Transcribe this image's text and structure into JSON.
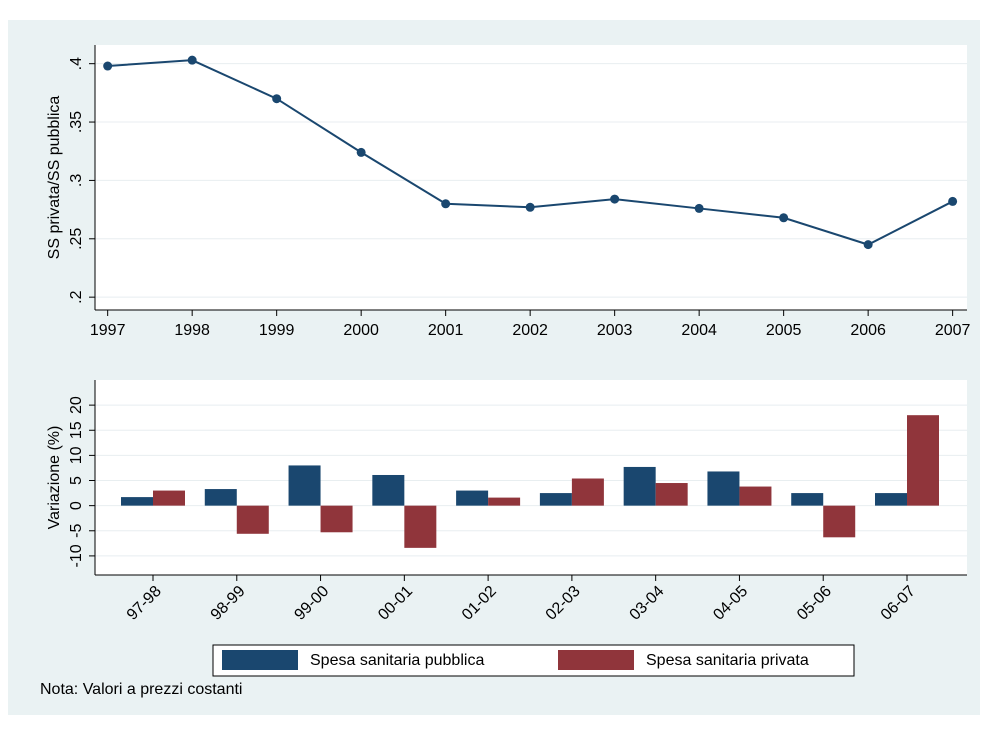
{
  "chart_data": [
    {
      "type": "line",
      "ylabel": "SS privata/SS pubblica",
      "x": [
        1997,
        1998,
        1999,
        2000,
        2001,
        2002,
        2003,
        2004,
        2005,
        2006,
        2007
      ],
      "xlim": [
        1996.85,
        2007.17
      ],
      "xticks": [
        1997,
        1998,
        1999,
        2000,
        2001,
        2002,
        2003,
        2004,
        2005,
        2006,
        2007
      ],
      "ylim": [
        0.189,
        0.416
      ],
      "yticks": [
        {
          "value": 0.2,
          "label": ".2"
        },
        {
          "value": 0.25,
          "label": ".25"
        },
        {
          "value": 0.3,
          "label": ".3"
        },
        {
          "value": 0.35,
          "label": ".35"
        },
        {
          "value": 0.4,
          "label": ".4"
        }
      ],
      "series": [
        {
          "color": "#1a476f",
          "values": [
            0.398,
            0.403,
            0.37,
            0.324,
            0.28,
            0.277,
            0.284,
            0.276,
            0.268,
            0.245,
            0.282
          ]
        }
      ],
      "grid": true
    },
    {
      "type": "bar",
      "ylabel": "Variazione (%)",
      "categories": [
        "97-98",
        "98-99",
        "99-00",
        "00-01",
        "01-02",
        "02-03",
        "03-04",
        "04-05",
        "05-06",
        "06-07"
      ],
      "ylim": [
        -13.8,
        25
      ],
      "yticks": [
        -10,
        -5,
        0,
        5,
        10,
        15,
        20
      ],
      "series": [
        {
          "name": "Spesa sanitaria pubblica",
          "color": "#1a476f",
          "values": [
            1.7,
            3.3,
            8.0,
            6.1,
            3.0,
            2.5,
            7.7,
            6.8,
            2.5,
            2.5
          ]
        },
        {
          "name": "Spesa sanitaria privata",
          "color": "#90353b",
          "values": [
            3.0,
            -5.6,
            -5.3,
            -8.4,
            1.6,
            5.4,
            4.5,
            3.8,
            -6.3,
            18.0
          ]
        }
      ],
      "grid": true,
      "legend": "bottom",
      "note": "Nota: Valori a prezzi costanti"
    }
  ]
}
